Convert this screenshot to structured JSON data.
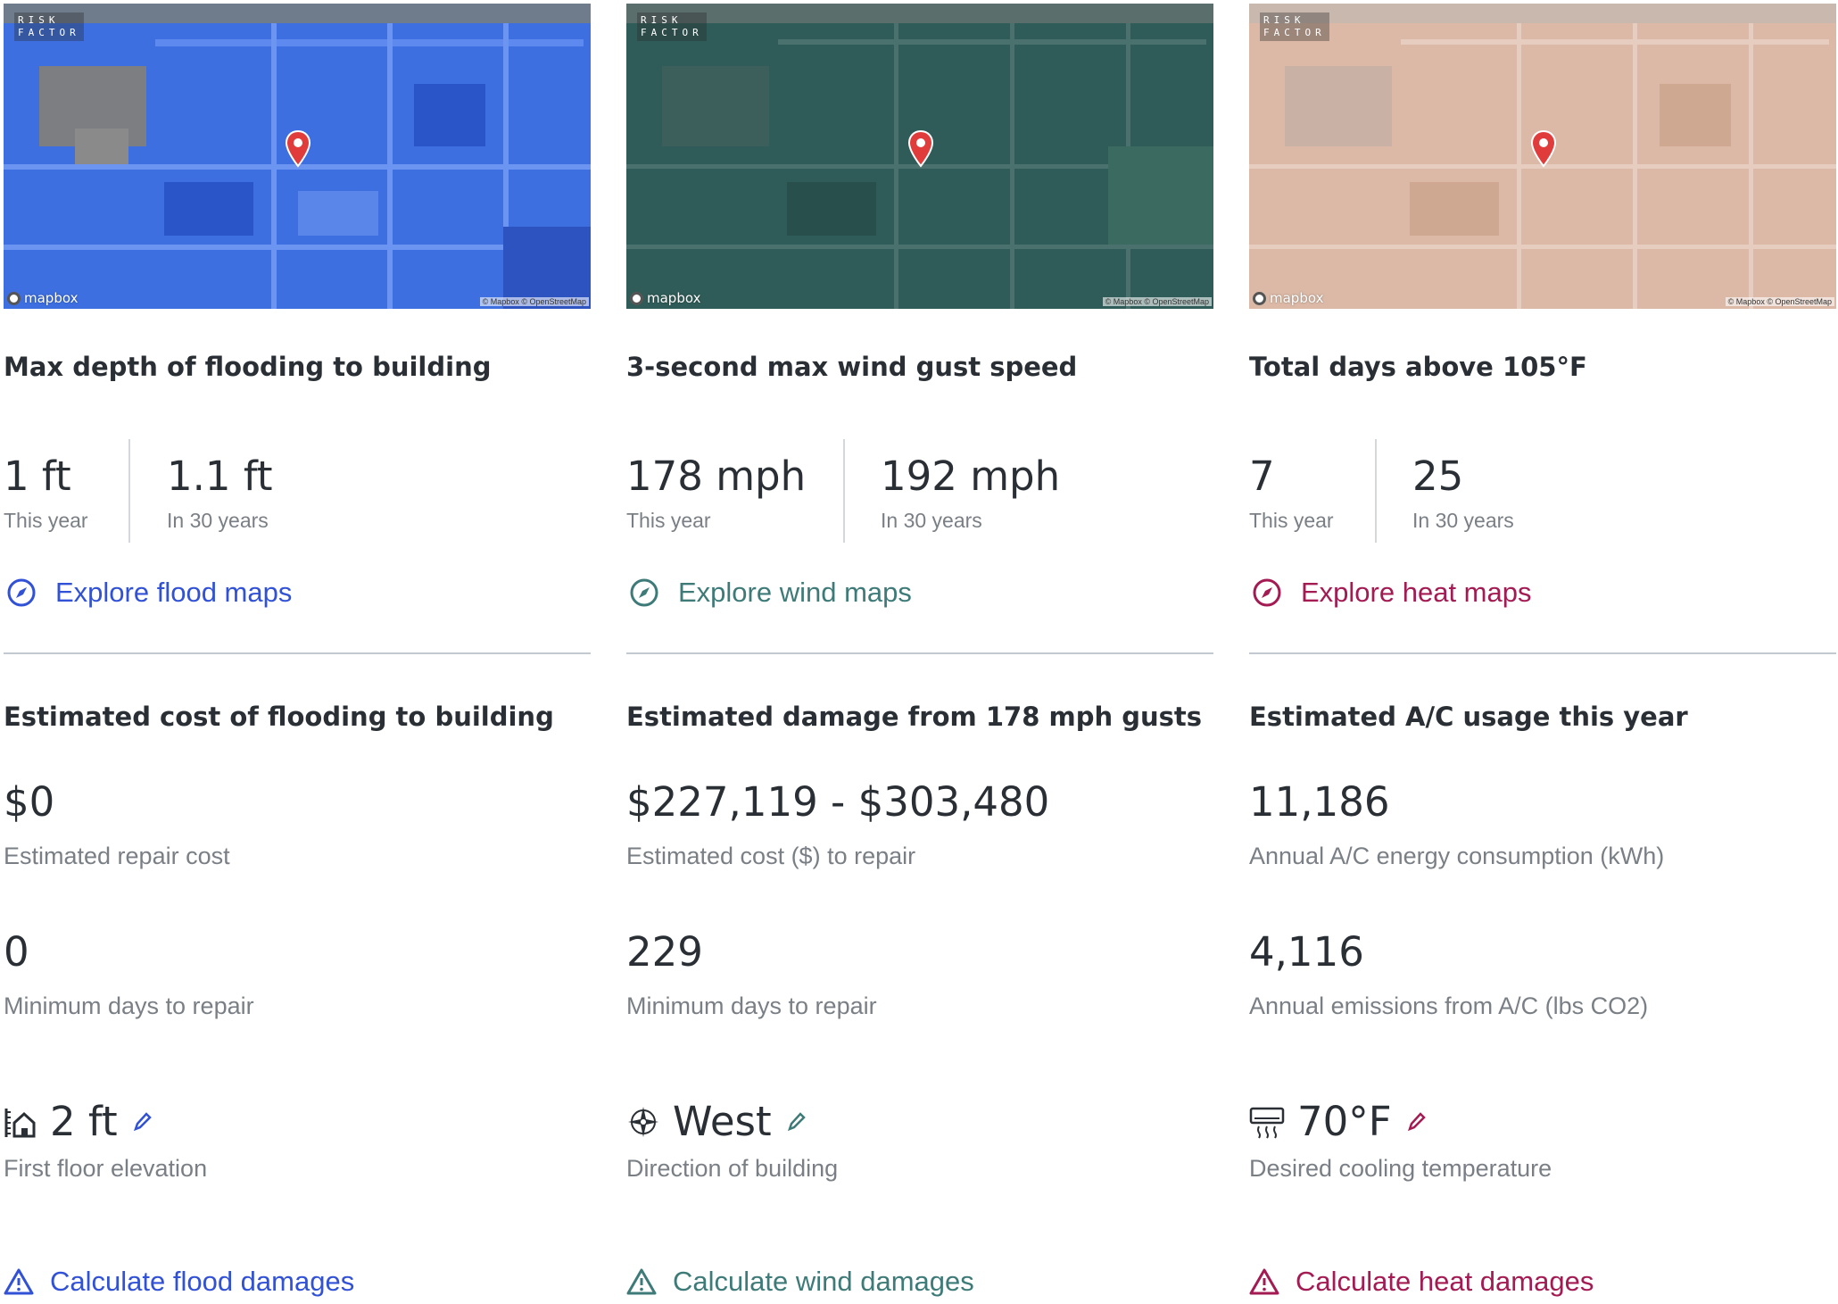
{
  "colors": {
    "flood": "#3151d6",
    "wind": "#3e7b78",
    "heat": "#a31b52"
  },
  "map_common": {
    "brand_line1": "RISK",
    "brand_line2": "FACTOR",
    "mapbox_label": "mapbox",
    "attribution": "© Mapbox © OpenStreetMap"
  },
  "columns": [
    {
      "key": "flood",
      "map_icon": "map-pin-icon",
      "metric_title": "Max depth of flooding to building",
      "current": {
        "value": "1 ft",
        "label": "This year"
      },
      "future": {
        "value": "1.1 ft",
        "label": "In 30 years"
      },
      "explore_label": "Explore flood maps",
      "explore_icon": "compass-icon",
      "section_title": "Estimated cost of flooding to building",
      "stat1": {
        "value": "$0",
        "label": "Estimated repair cost"
      },
      "stat2": {
        "value": "0",
        "label": "Minimum days to repair"
      },
      "setting": {
        "value": "2 ft",
        "label": "First floor elevation",
        "icon": "house-elevation-icon"
      },
      "calculate_label": "Calculate flood damages",
      "calculate_icon": "warning-icon"
    },
    {
      "key": "wind",
      "map_icon": "map-pin-icon",
      "metric_title": "3-second max wind gust speed",
      "current": {
        "value": "178 mph",
        "label": "This year"
      },
      "future": {
        "value": "192 mph",
        "label": "In 30 years"
      },
      "explore_label": "Explore wind maps",
      "explore_icon": "compass-icon",
      "section_title": "Estimated damage from 178 mph gusts",
      "stat1": {
        "value": "$227,119 - $303,480",
        "label": "Estimated cost ($) to repair"
      },
      "stat2": {
        "value": "229",
        "label": "Minimum days to repair"
      },
      "setting": {
        "value": "West",
        "label": "Direction of building",
        "icon": "compass-rose-icon"
      },
      "calculate_label": "Calculate wind damages",
      "calculate_icon": "warning-icon"
    },
    {
      "key": "heat",
      "map_icon": "map-pin-icon",
      "metric_title": "Total days above 105°F",
      "current": {
        "value": "7",
        "label": "This year"
      },
      "future": {
        "value": "25",
        "label": "In 30 years"
      },
      "explore_label": "Explore heat maps",
      "explore_icon": "compass-icon",
      "section_title": "Estimated A/C usage this year",
      "stat1": {
        "value": "11,186",
        "label": "Annual A/C energy consumption (kWh)"
      },
      "stat2": {
        "value": "4,116",
        "label": "Annual emissions from A/C (lbs CO2)"
      },
      "setting": {
        "value": "70°F",
        "label": "Desired cooling temperature",
        "icon": "air-conditioner-icon"
      },
      "calculate_label": "Calculate heat damages",
      "calculate_icon": "warning-icon"
    }
  ]
}
